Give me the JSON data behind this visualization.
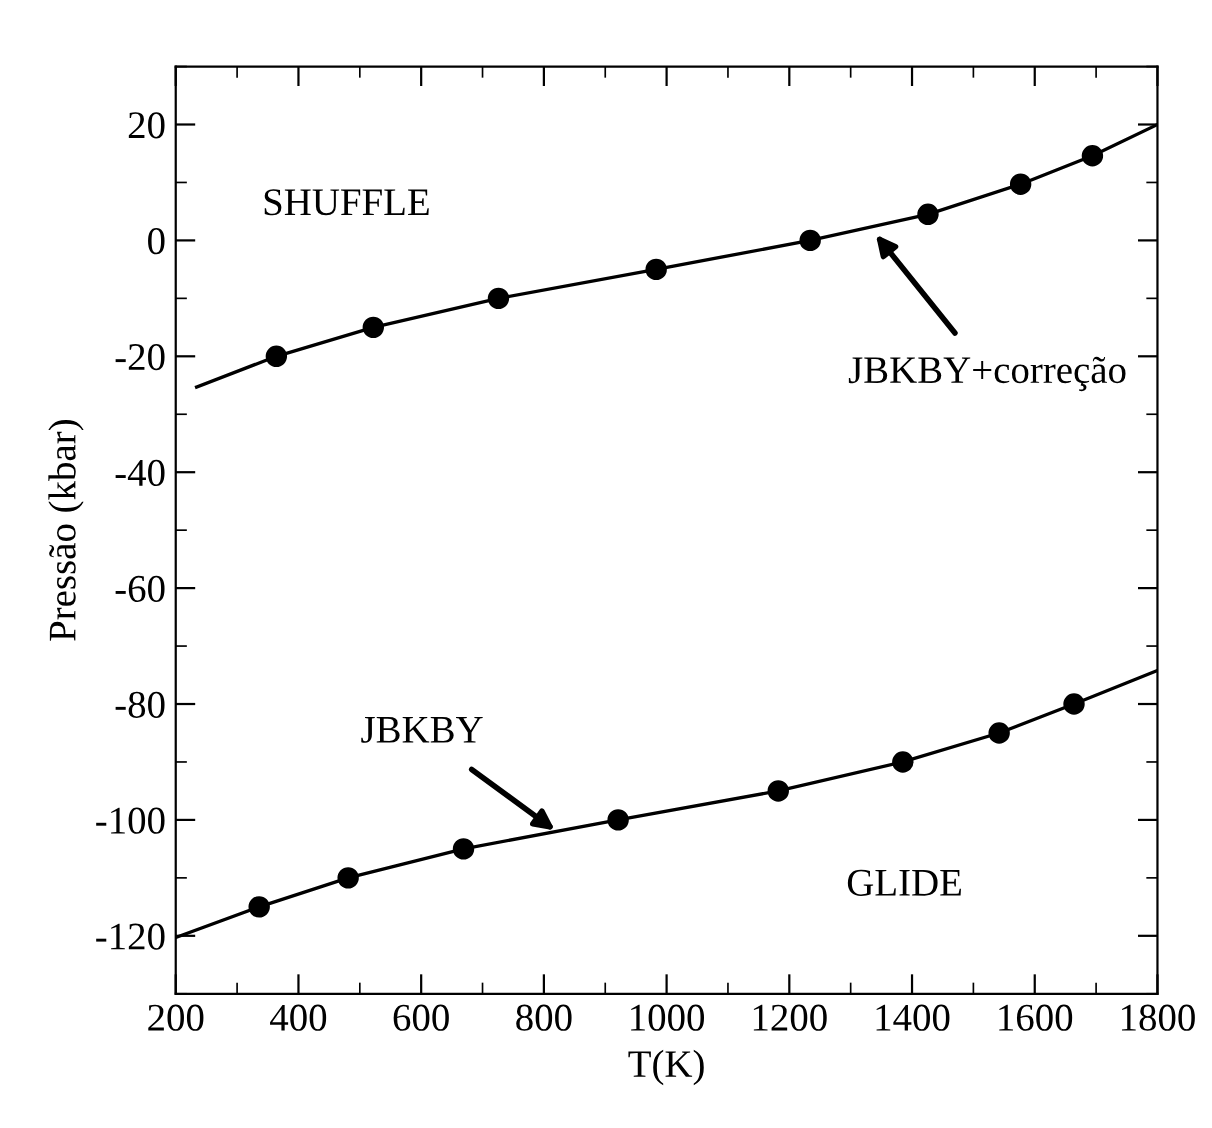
{
  "chart_data": {
    "type": "scatter",
    "xlabel": "T(K)",
    "ylabel": "Pressão (kbar)",
    "xlim": [
      200,
      1800
    ],
    "ylim": [
      -130,
      30
    ],
    "xticks": [
      200,
      400,
      600,
      800,
      1000,
      1200,
      1400,
      1600,
      1800
    ],
    "yticks": [
      -120,
      -100,
      -80,
      -60,
      -40,
      -20,
      0,
      20
    ],
    "grid": false,
    "legend": false,
    "series": [
      {
        "type": "line",
        "marker": "none",
        "color": "#000000",
        "x": [
          234,
          364,
          522,
          726,
          983,
          1234,
          1426,
          1577,
          1694,
          1800
        ],
        "values": [
          -25.3,
          -20,
          -15,
          -10,
          -5,
          0,
          4.5,
          9.7,
          14.6,
          20
        ]
      },
      {
        "marker": "circle",
        "color": "#000000",
        "x": [
          364,
          522,
          726,
          983,
          1234,
          1426,
          1577,
          1694
        ],
        "values": [
          -20,
          -15,
          -10,
          -5,
          0,
          4.5,
          9.7,
          14.6
        ]
      },
      {
        "type": "line",
        "marker": "none",
        "color": "#000000",
        "x": [
          200,
          336,
          481,
          669,
          921,
          1182,
          1385,
          1542,
          1664,
          1800
        ],
        "values": [
          -120.3,
          -115,
          -110,
          -105,
          -100,
          -95,
          -90,
          -85,
          -80,
          -74.2
        ]
      },
      {
        "marker": "circle",
        "color": "#000000",
        "x": [
          336,
          481,
          669,
          921,
          1182,
          1385,
          1542,
          1664
        ],
        "values": [
          -115,
          -110,
          -105,
          -100,
          -95,
          -90,
          -85,
          -80
        ]
      }
    ],
    "annotations": [
      "SHUFFLE",
      {
        "text": "JBKBY+correção",
        "x": 1341,
        "y": 1
      },
      {
        "text": "JBKBY",
        "x": 818,
        "y": -101.8
      },
      "GLIDE"
    ]
  }
}
